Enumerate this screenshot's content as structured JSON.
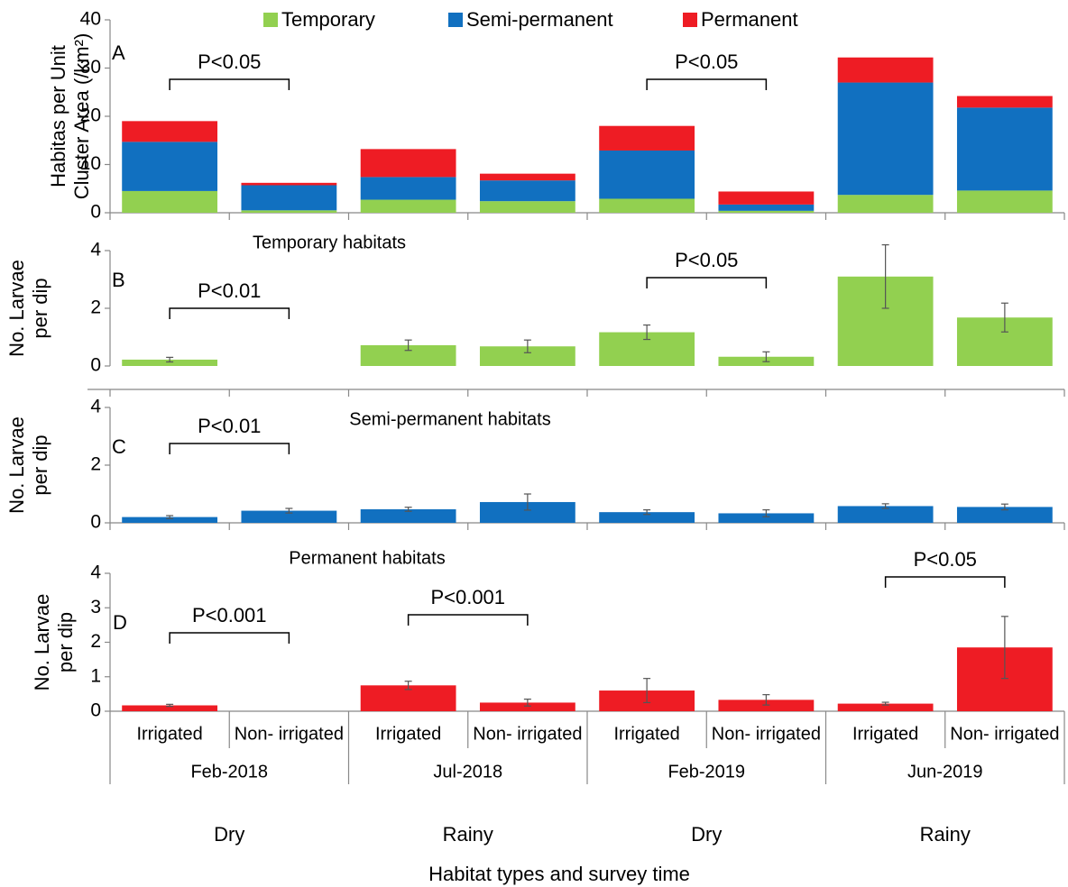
{
  "chart_data": [
    {
      "type": "bar",
      "stacked": true,
      "label": "A",
      "ylabel": [
        "Habitas per Unit",
        "Cluster Area (/km²)"
      ],
      "ylim": [
        0,
        40
      ],
      "yticks": [
        0,
        10,
        20,
        30,
        40
      ],
      "legend": "top",
      "series": [
        {
          "name": "Temporary",
          "color": "#92d050",
          "values": [
            4.5,
            0.5,
            2.7,
            2.4,
            2.9,
            0.4,
            3.7,
            4.6
          ]
        },
        {
          "name": "Semi-permanent",
          "color": "#1170c0",
          "values": [
            10.2,
            5.2,
            4.7,
            4.3,
            10.0,
            1.3,
            23.3,
            17.2
          ]
        },
        {
          "name": "Permanent",
          "color": "#ee1c24",
          "values": [
            4.3,
            0.5,
            5.8,
            1.4,
            5.1,
            2.7,
            5.2,
            2.4
          ]
        }
      ],
      "annotations": [
        {
          "text": "P<0.05",
          "between": [
            0,
            1
          ]
        },
        {
          "text": "P<0.05",
          "between": [
            4,
            5
          ]
        }
      ]
    },
    {
      "type": "bar",
      "label": "B",
      "title": "Temporary habitats",
      "ylabel": [
        "No. Larvae",
        "per dip"
      ],
      "ylim": [
        0,
        4
      ],
      "yticks": [
        0,
        2,
        4
      ],
      "color": "#92d050",
      "values": [
        0.22,
        0,
        0.72,
        0.68,
        1.17,
        0.32,
        3.1,
        1.68
      ],
      "errors": [
        0.08,
        0,
        0.18,
        0.22,
        0.25,
        0.17,
        1.1,
        0.5
      ],
      "annotations": [
        {
          "text": "P<0.01",
          "between": [
            0,
            1
          ]
        },
        {
          "text": "P<0.05",
          "between": [
            4,
            5
          ]
        }
      ]
    },
    {
      "type": "bar",
      "label": "C",
      "title": "Semi-permanent habitats",
      "ylabel": [
        "No. Larvae",
        "per dip"
      ],
      "ylim": [
        0,
        4
      ],
      "yticks": [
        0,
        2,
        4
      ],
      "color": "#1170c0",
      "values": [
        0.2,
        0.42,
        0.47,
        0.72,
        0.37,
        0.33,
        0.58,
        0.55
      ],
      "errors": [
        0.05,
        0.08,
        0.07,
        0.28,
        0.08,
        0.12,
        0.08,
        0.1
      ],
      "annotations": [
        {
          "text": "P<0.01",
          "between": [
            0,
            1
          ]
        }
      ]
    },
    {
      "type": "bar",
      "label": "D",
      "title": "Permanent habitats",
      "ylabel": [
        "No. Larvae",
        "per dip"
      ],
      "ylim": [
        0,
        4
      ],
      "yticks": [
        0,
        1,
        2,
        3,
        4
      ],
      "color": "#ee1c24",
      "values": [
        0.17,
        0,
        0.75,
        0.25,
        0.6,
        0.33,
        0.22,
        1.85
      ],
      "errors": [
        0.03,
        0,
        0.12,
        0.1,
        0.35,
        0.15,
        0.04,
        0.9
      ],
      "annotations": [
        {
          "text": "P<0.001",
          "between": [
            0,
            1
          ]
        },
        {
          "text": "P<0.001",
          "between": [
            2,
            3
          ]
        },
        {
          "text": "P<0.05",
          "between": [
            6,
            7
          ]
        }
      ],
      "categories": [
        "Irrigated",
        "Non- irrigated",
        "Irrigated",
        "Non- irrigated",
        "Irrigated",
        "Non- irrigated",
        "Irrigated",
        "Non- irrigated"
      ],
      "groups": [
        "Feb-2018",
        "Jul-2018",
        "Feb-2019",
        "Jun-2019"
      ],
      "seasons": [
        "Dry",
        "Rainy",
        "Dry",
        "Rainy"
      ],
      "xlabel": "Habitat types and survey time"
    }
  ]
}
